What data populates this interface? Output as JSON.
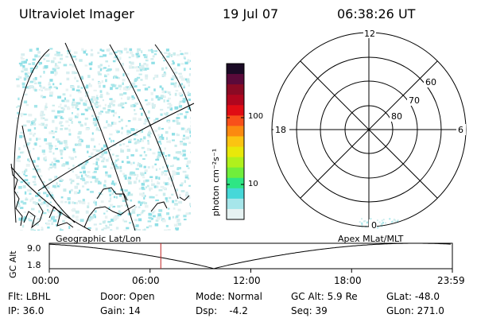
{
  "header": {
    "title": "Ultraviolet Imager",
    "date": "19 Jul 07",
    "time": "06:38:26 UT"
  },
  "colorbar": {
    "unit_label": "photon cm⁻²s⁻¹",
    "ticks": [
      "100",
      "10"
    ],
    "colors": [
      "#1a0a25",
      "#5a0a3a",
      "#8a0a24",
      "#b0061e",
      "#e00c14",
      "#f8501a",
      "#fb8a10",
      "#fbc412",
      "#e8e80a",
      "#b0f01c",
      "#70ee3c",
      "#2ee684",
      "#46d8d8",
      "#a6e6ea",
      "#e6f2f2"
    ]
  },
  "map": {
    "title": "Geographic Lat/Lon"
  },
  "polar": {
    "title": "Apex MLat/MLT",
    "mlt_labels": [
      "12",
      "18",
      "6",
      "0"
    ],
    "lat_labels": [
      "60",
      "70",
      "80"
    ]
  },
  "timeline": {
    "ylabel": "GC Alt",
    "y_ticks": [
      "9.0",
      "1.8"
    ],
    "x_ticks": [
      "00:00",
      "06:00",
      "12:00",
      "18:00",
      "23:59"
    ],
    "current_time_hours": 6.64,
    "y_range": [
      1.8,
      9.0
    ],
    "x_range_hours": [
      0,
      24
    ]
  },
  "status": {
    "flt": "Flt: LBHL",
    "door": "Door: Open",
    "mode": "Mode: Normal",
    "gc_alt": "GC Alt: 5.9 Re",
    "glat": "GLat: -48.0",
    "ip": "IP: 36.0",
    "gain": "Gain: 14",
    "dsp": "Dsp:    -4.2",
    "seq": "Seq: 39",
    "glon": "GLon: 271.0"
  }
}
